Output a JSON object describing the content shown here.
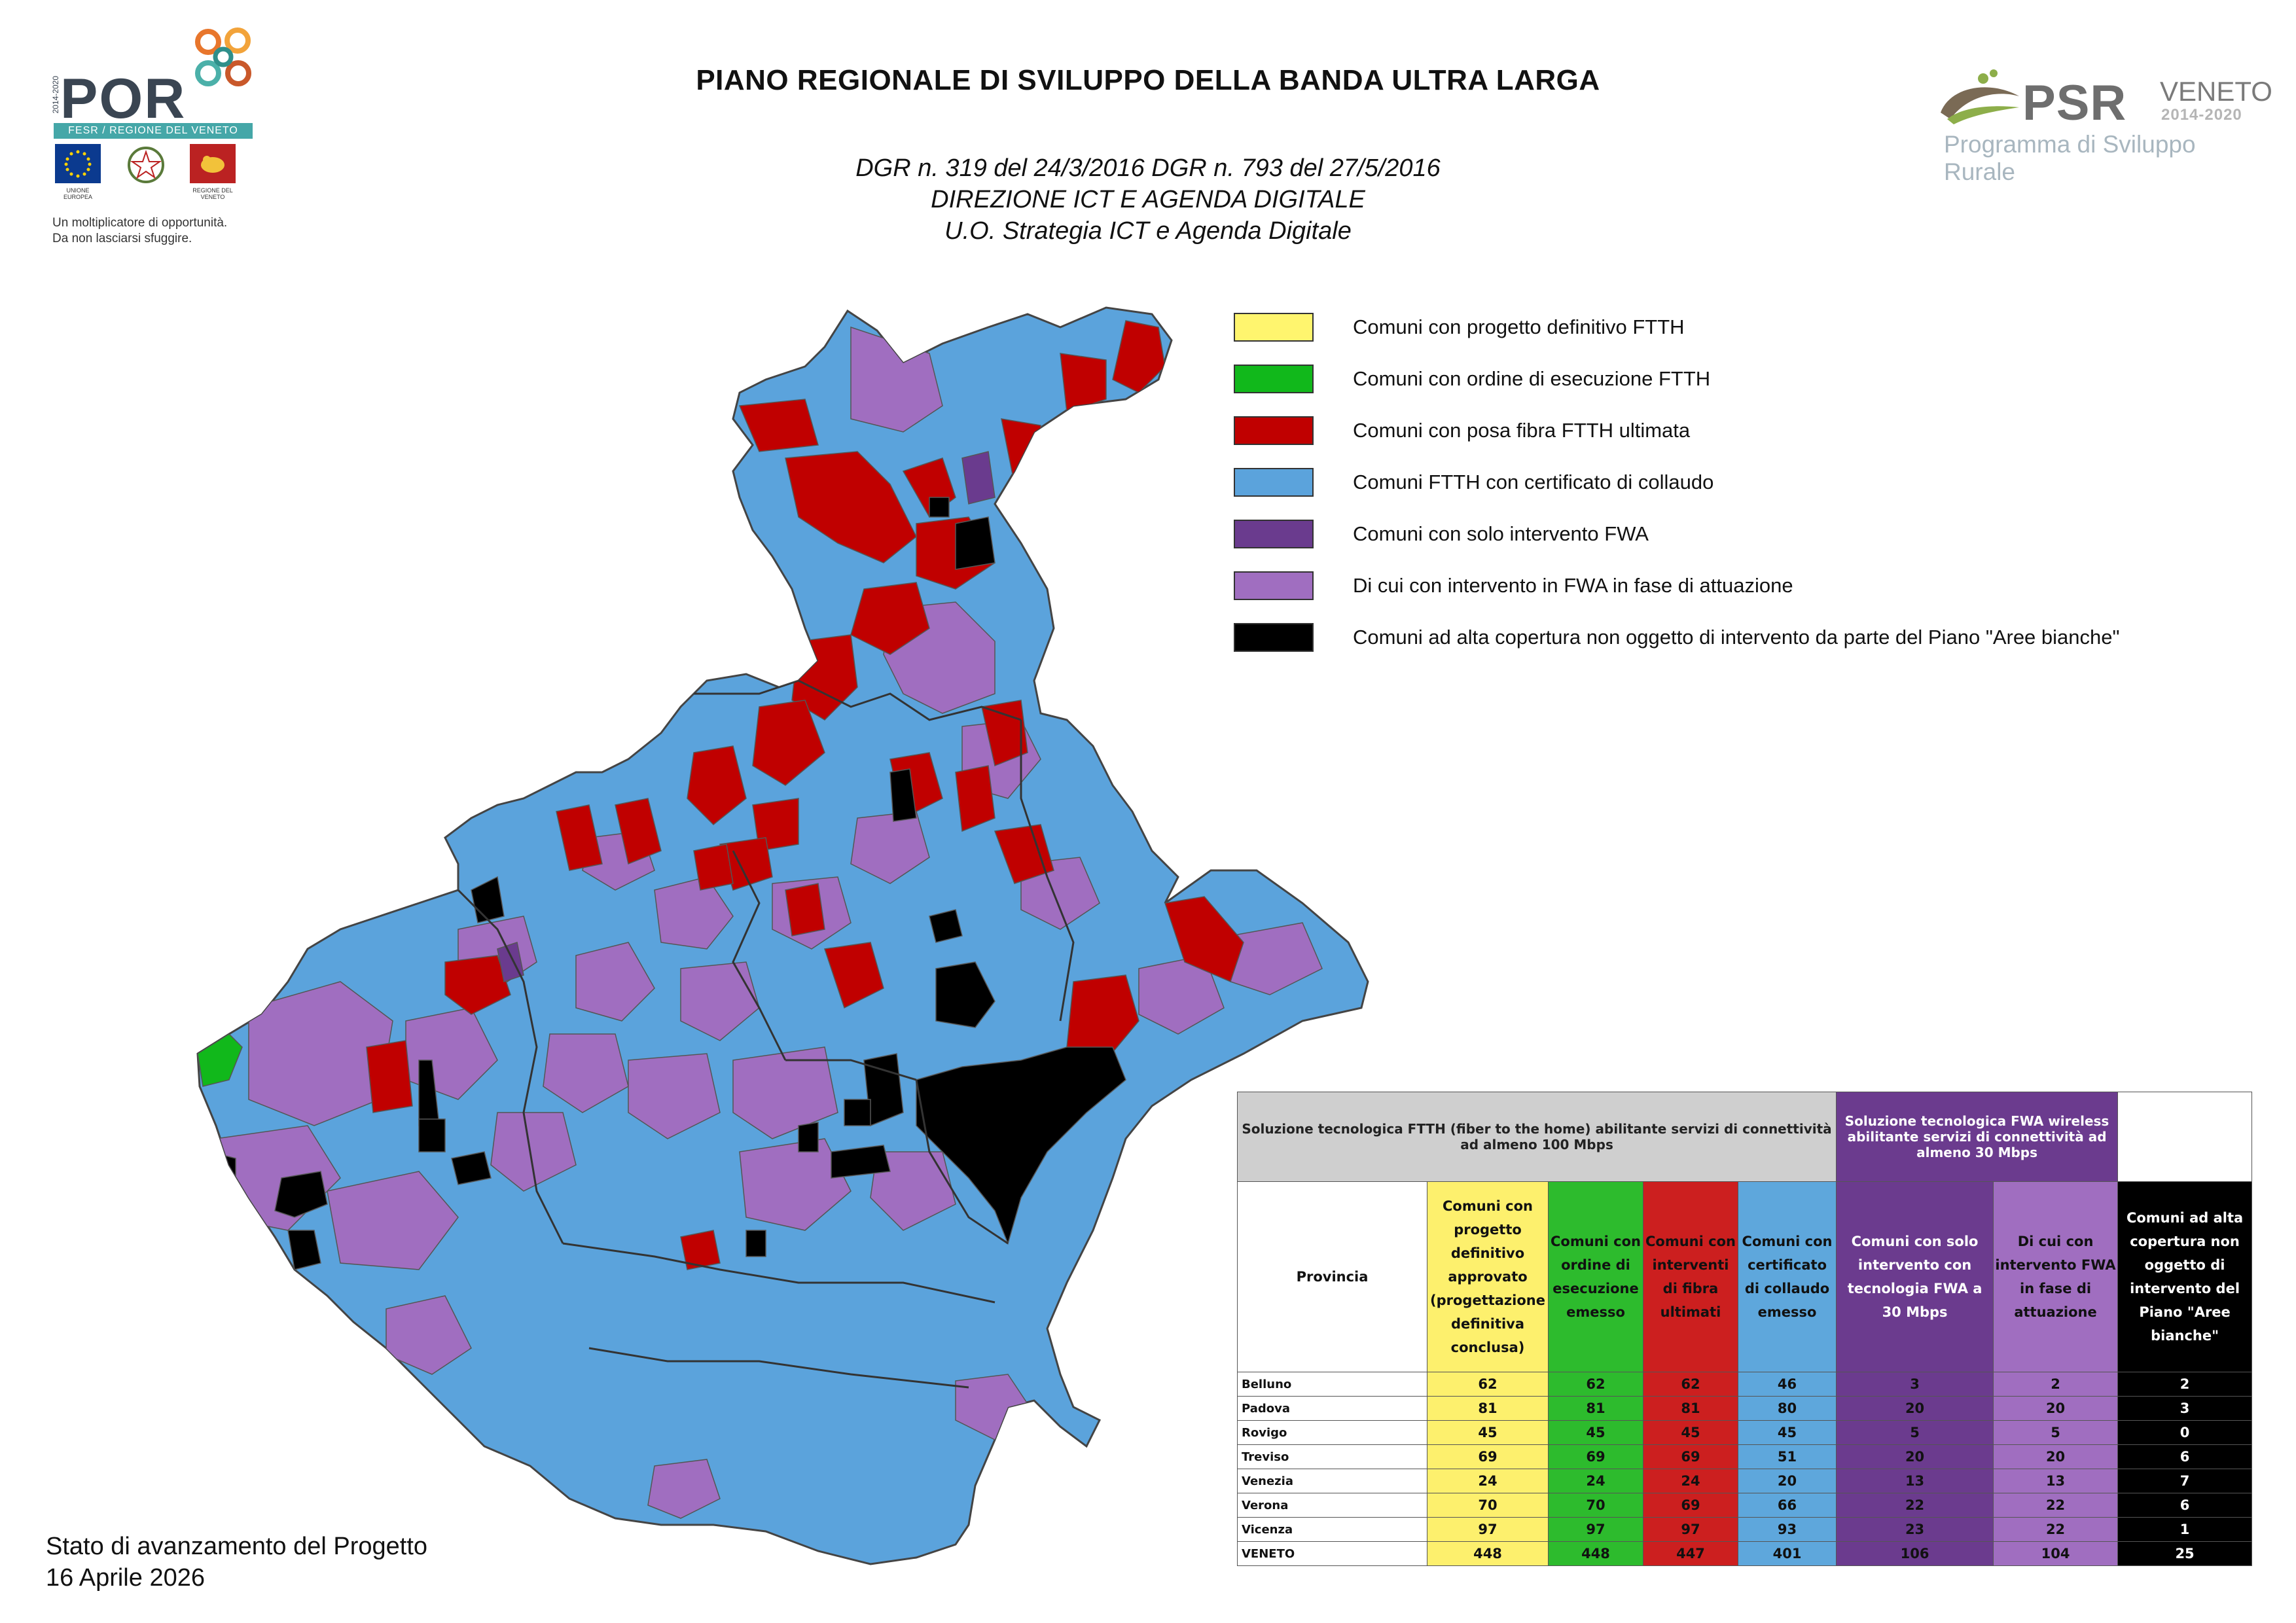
{
  "header": {
    "title": "PIANO REGIONALE DI SVILUPPO DELLA BANDA ULTRA LARGA",
    "subtitle1": "DGR n. 319 del 24/3/2016 DGR n. 793 del 27/5/2016",
    "subtitle2": "DIREZIONE ICT E AGENDA DIGITALE",
    "subtitle3": "U.O. Strategia ICT e Agenda Digitale"
  },
  "logos": {
    "por": {
      "text": "POR",
      "years": "2014-2020",
      "band": "FESR / REGIONE DEL VENETO",
      "emblem_eu": "UNIONE EUROPEA",
      "emblem_region": "REGIONE DEL VENETO",
      "tagline1": "Un moltiplicatore di opportunità.",
      "tagline2": "Da non lasciarsi sfuggire."
    },
    "psr": {
      "text": "PSR",
      "veneto": "VENETO",
      "years": "2014-2020",
      "subtitle": "Programma di Sviluppo Rurale"
    }
  },
  "legend": [
    {
      "color": "#fff56e",
      "label": "Comuni con progetto definitivo FTTH"
    },
    {
      "color": "#11b81b",
      "label": "Comuni con ordine di esecuzione FTTH"
    },
    {
      "color": "#c00000",
      "label": "Comuni con posa fibra FTTH ultimata"
    },
    {
      "color": "#5ba3dc",
      "label": "Comuni FTTH con certificato di collaudo"
    },
    {
      "color": "#6a3b8e",
      "label": "Comuni con solo intervento FWA"
    },
    {
      "color": "#a06ec0",
      "label": "Di cui con intervento in FWA in fase di attuazione"
    },
    {
      "color": "#000000",
      "label": "Comuni ad alta copertura non oggetto di intervento da parte del Piano \"Aree bianche\""
    }
  ],
  "table": {
    "group_ftth": "Soluzione tecnologica FTTH (fiber to the home) abilitante servizi di connettività ad almeno 100 Mbps",
    "group_fwa": "Soluzione tecnologica FWA wireless abilitante servizi di connettività ad almeno 30 Mbps",
    "columns": [
      "Provincia",
      "Comuni con progetto definitivo approvato (progettazione definitiva conclusa)",
      "Comuni con ordine di esecuzione emesso",
      "Comuni con interventi di fibra ultimati",
      "Comuni con certificato di collaudo emesso",
      "Comuni con solo intervento con tecnologia FWA a 30 Mbps",
      "Di cui con intervento FWA in fase di attuazione",
      "Comuni ad alta copertura non oggetto di intervento del Piano \"Aree bianche\""
    ],
    "rows": [
      {
        "provincia": "Belluno",
        "progetto": "62",
        "ordine": "62",
        "fibra": "62",
        "collaudo": "46",
        "fwa": "3",
        "fwa_attuazione": "2",
        "alta_copertura": "2"
      },
      {
        "provincia": "Padova",
        "progetto": "81",
        "ordine": "81",
        "fibra": "81",
        "collaudo": "80",
        "fwa": "20",
        "fwa_attuazione": "20",
        "alta_copertura": "3"
      },
      {
        "provincia": "Rovigo",
        "progetto": "45",
        "ordine": "45",
        "fibra": "45",
        "collaudo": "45",
        "fwa": "5",
        "fwa_attuazione": "5",
        "alta_copertura": "0"
      },
      {
        "provincia": "Treviso",
        "progetto": "69",
        "ordine": "69",
        "fibra": "69",
        "collaudo": "51",
        "fwa": "20",
        "fwa_attuazione": "20",
        "alta_copertura": "6"
      },
      {
        "provincia": "Venezia",
        "progetto": "24",
        "ordine": "24",
        "fibra": "24",
        "collaudo": "20",
        "fwa": "13",
        "fwa_attuazione": "13",
        "alta_copertura": "7"
      },
      {
        "provincia": "Verona",
        "progetto": "70",
        "ordine": "70",
        "fibra": "69",
        "collaudo": "66",
        "fwa": "22",
        "fwa_attuazione": "22",
        "alta_copertura": "6"
      },
      {
        "provincia": "Vicenza",
        "progetto": "97",
        "ordine": "97",
        "fibra": "97",
        "collaudo": "93",
        "fwa": "23",
        "fwa_attuazione": "22",
        "alta_copertura": "1"
      },
      {
        "provincia": "VENETO",
        "progetto": "448",
        "ordine": "448",
        "fibra": "447",
        "collaudo": "401",
        "fwa": "106",
        "fwa_attuazione": "104",
        "alta_copertura": "25"
      }
    ]
  },
  "footer": {
    "line1": "Stato di avanzamento del Progetto",
    "line2": "16 Aprile 2026"
  }
}
